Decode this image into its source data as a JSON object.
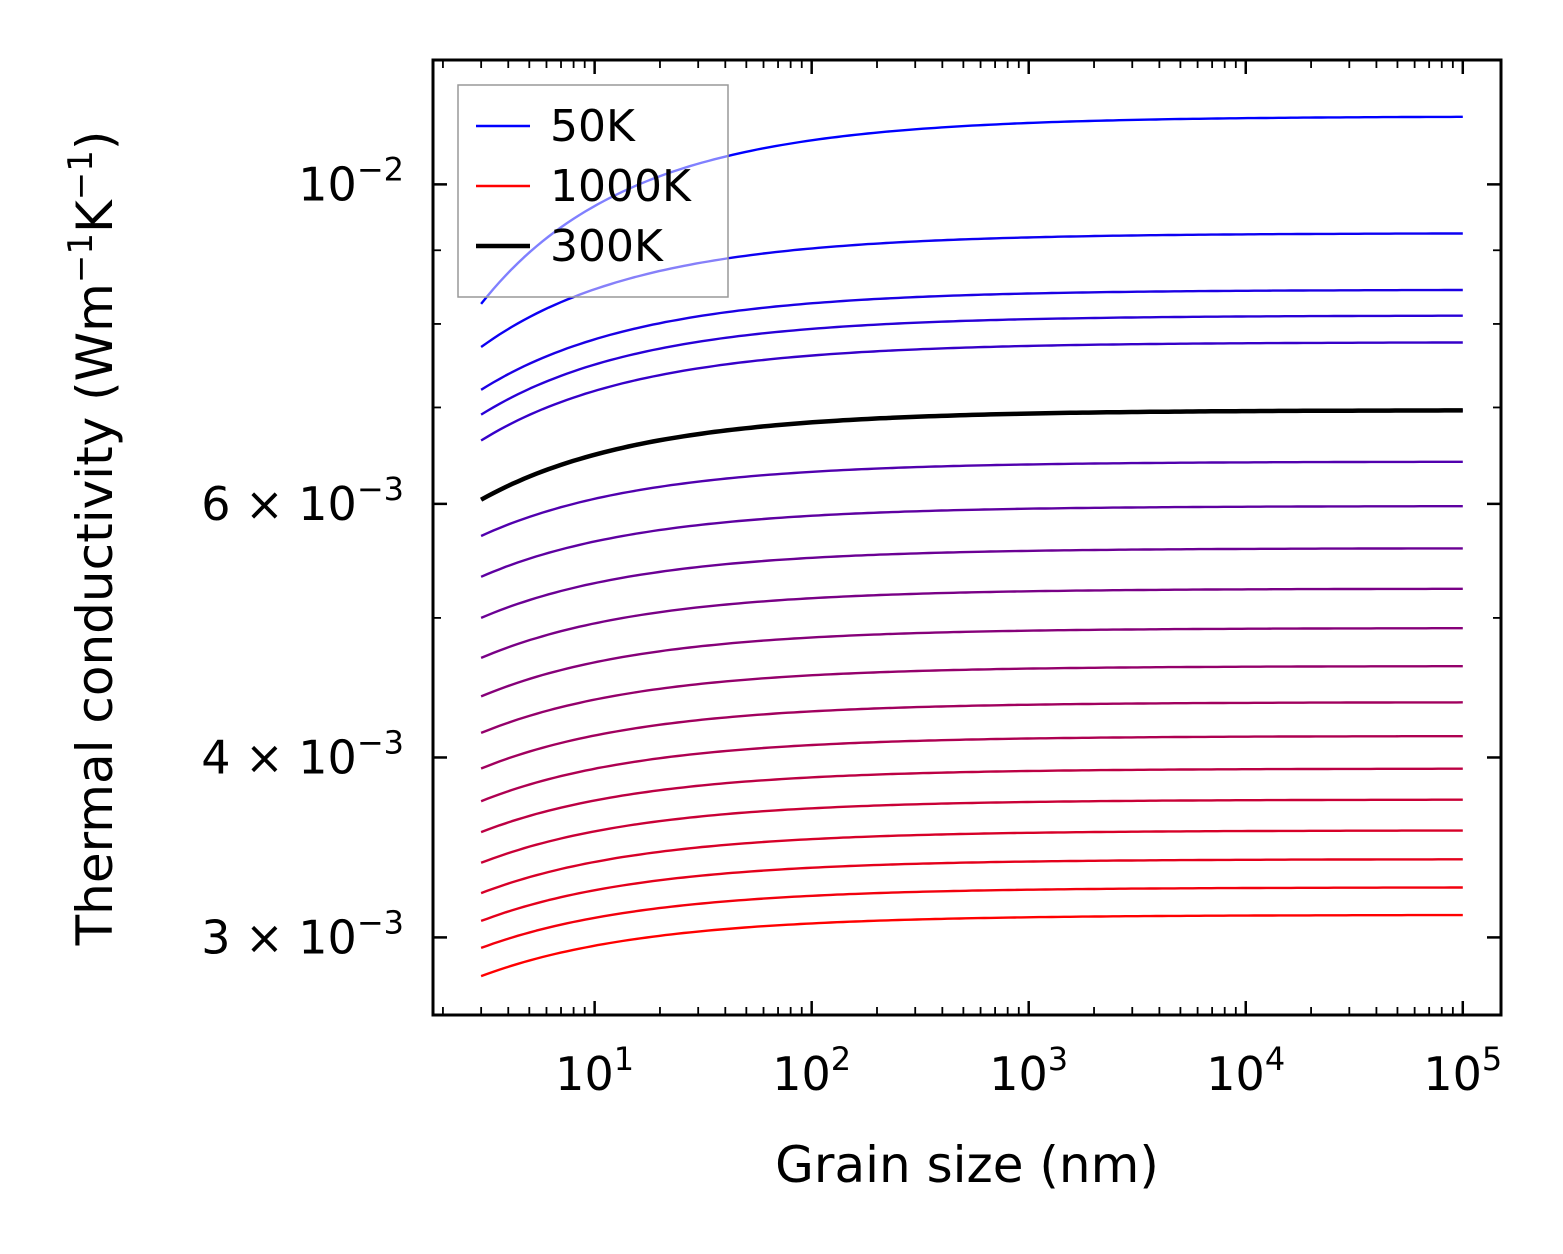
{
  "chart_data": {
    "type": "line",
    "xlabel": "Grain size (nm)",
    "ylabel": "Thermal conductivity (Wm",
    "ylabel_sup1": "−1",
    "ylabel_mid": "K",
    "ylabel_sup2": "−1",
    "ylabel_end": ")",
    "xscale": "log",
    "yscale": "log",
    "xlim": [
      1.8,
      150000
    ],
    "ylim": [
      0.00265,
      0.0122
    ],
    "x_ticks": [
      {
        "base": "10",
        "exp": "1"
      },
      {
        "base": "10",
        "exp": "2"
      },
      {
        "base": "10",
        "exp": "3"
      },
      {
        "base": "10",
        "exp": "4"
      },
      {
        "base": "10",
        "exp": "5"
      }
    ],
    "x_tick_values": [
      10,
      100,
      1000,
      10000,
      100000
    ],
    "y_ticks": [
      {
        "value": 0.01,
        "mant": "",
        "base": "10",
        "exp": "−2"
      },
      {
        "value": 0.006,
        "mant": "6 × ",
        "base": "10",
        "exp": "−3"
      },
      {
        "value": 0.004,
        "mant": "4 × ",
        "base": "10",
        "exp": "−3"
      },
      {
        "value": 0.003,
        "mant": "3 × ",
        "base": "10",
        "exp": "−3"
      }
    ],
    "y_minor_ticks": [
      0.009,
      0.008,
      0.007,
      0.005
    ],
    "grain_size_range": [
      3,
      100000
    ],
    "series": [
      {
        "name": "50K",
        "color": "#0000ff",
        "k_bulk": 0.01115,
        "k_min": 0.00826
      },
      {
        "name": "",
        "color": "#0d00f2",
        "k_bulk": 0.00925,
        "k_min": 0.00771
      },
      {
        "name": "",
        "color": "#1b00e4",
        "k_bulk": 0.00845,
        "k_min": 0.0072
      },
      {
        "name": "",
        "color": "#2800d7",
        "k_bulk": 0.00811,
        "k_min": 0.00692
      },
      {
        "name": "",
        "color": "#3600c9",
        "k_bulk": 0.00777,
        "k_min": 0.00664
      },
      {
        "name": "",
        "color": "#4300bc",
        "k_bulk": 0.00697,
        "k_min": 0.00604
      },
      {
        "name": "",
        "color": "#5100ae",
        "k_bulk": 0.00642,
        "k_min": 0.0057
      },
      {
        "name": "",
        "color": "#5e00a1",
        "k_bulk": 0.00598,
        "k_min": 0.00534
      },
      {
        "name": "",
        "color": "#6b0094",
        "k_bulk": 0.00559,
        "k_min": 0.005
      },
      {
        "name": "",
        "color": "#790086",
        "k_bulk": 0.00524,
        "k_min": 0.00469
      },
      {
        "name": "",
        "color": "#860079",
        "k_bulk": 0.00492,
        "k_min": 0.00441
      },
      {
        "name": "",
        "color": "#94006b",
        "k_bulk": 0.00463,
        "k_min": 0.00416
      },
      {
        "name": "",
        "color": "#a1005e",
        "k_bulk": 0.00437,
        "k_min": 0.00393
      },
      {
        "name": "",
        "color": "#ae0051",
        "k_bulk": 0.00414,
        "k_min": 0.00373
      },
      {
        "name": "",
        "color": "#bc0043",
        "k_bulk": 0.00393,
        "k_min": 0.00355
      },
      {
        "name": "",
        "color": "#c90036",
        "k_bulk": 0.00374,
        "k_min": 0.00338
      },
      {
        "name": "",
        "color": "#d70028",
        "k_bulk": 0.00356,
        "k_min": 0.00322
      },
      {
        "name": "",
        "color": "#e4001b",
        "k_bulk": 0.0034,
        "k_min": 0.00308
      },
      {
        "name": "",
        "color": "#f2000d",
        "k_bulk": 0.00325,
        "k_min": 0.00295
      },
      {
        "name": "1000K",
        "color": "#ff0000",
        "k_bulk": 0.00311,
        "k_min": 0.00282
      },
      {
        "name": "300K",
        "color": "#000000",
        "k_bulk": 0.00697,
        "k_min": 0.00604,
        "highlight": true
      }
    ],
    "legend": {
      "placement": "upper-left",
      "entries": [
        {
          "label": "50K",
          "color": "#0000ff"
        },
        {
          "label": "1000K",
          "color": "#ff0000"
        },
        {
          "label": "300K",
          "color": "#000000"
        }
      ]
    }
  }
}
